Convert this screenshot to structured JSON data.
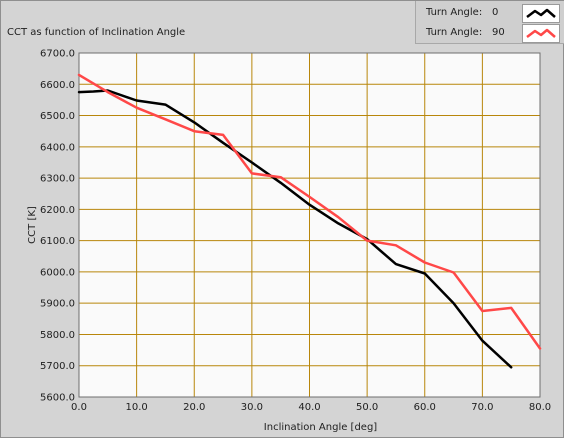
{
  "chart_title": "CCT as function of Inclination Angle",
  "legend": {
    "items": [
      {
        "label": "Turn Angle:",
        "value": "0",
        "color": "#000000"
      },
      {
        "label": "Turn Angle:",
        "value": "90",
        "color": "#ff4848"
      }
    ]
  },
  "chart_data": {
    "type": "line",
    "title": "CCT as function of Inclination Angle",
    "xlabel": "Inclination Angle [deg]",
    "ylabel": "CCT [K]",
    "xlim": [
      0,
      80
    ],
    "ylim": [
      5600,
      6700
    ],
    "x_ticks": [
      "0.0",
      "10.0",
      "20.0",
      "30.0",
      "40.0",
      "50.0",
      "60.0",
      "70.0",
      "80.0"
    ],
    "y_ticks": [
      "5600.0",
      "5700.0",
      "5800.0",
      "5900.0",
      "6000.0",
      "6100.0",
      "6200.0",
      "6300.0",
      "6400.0",
      "6500.0",
      "6600.0",
      "6700.0"
    ],
    "grid": true,
    "grid_color": "#b8860b",
    "plot_background": "#fafafa",
    "legend_position": "top-right",
    "series": [
      {
        "name": "Turn Angle: 0",
        "color": "#000000",
        "x": [
          0,
          2.5,
          5,
          10,
          15,
          20,
          25,
          30,
          35,
          40,
          45,
          50,
          55,
          60,
          65,
          70,
          75
        ],
        "y": [
          6575,
          6577,
          6580,
          6548,
          6535,
          6478,
          6413,
          6350,
          6285,
          6215,
          6155,
          6105,
          6025,
          5995,
          5900,
          5780,
          5695
        ]
      },
      {
        "name": "Turn Angle: 90",
        "color": "#ff4848",
        "x": [
          0,
          5,
          10,
          15,
          20,
          25,
          30,
          35,
          40,
          45,
          50,
          55,
          60,
          65,
          70,
          75,
          80
        ],
        "y": [
          6630,
          6575,
          6525,
          6488,
          6450,
          6438,
          6315,
          6303,
          6240,
          6175,
          6100,
          6085,
          6030,
          5998,
          5875,
          5885,
          5755
        ]
      }
    ]
  }
}
